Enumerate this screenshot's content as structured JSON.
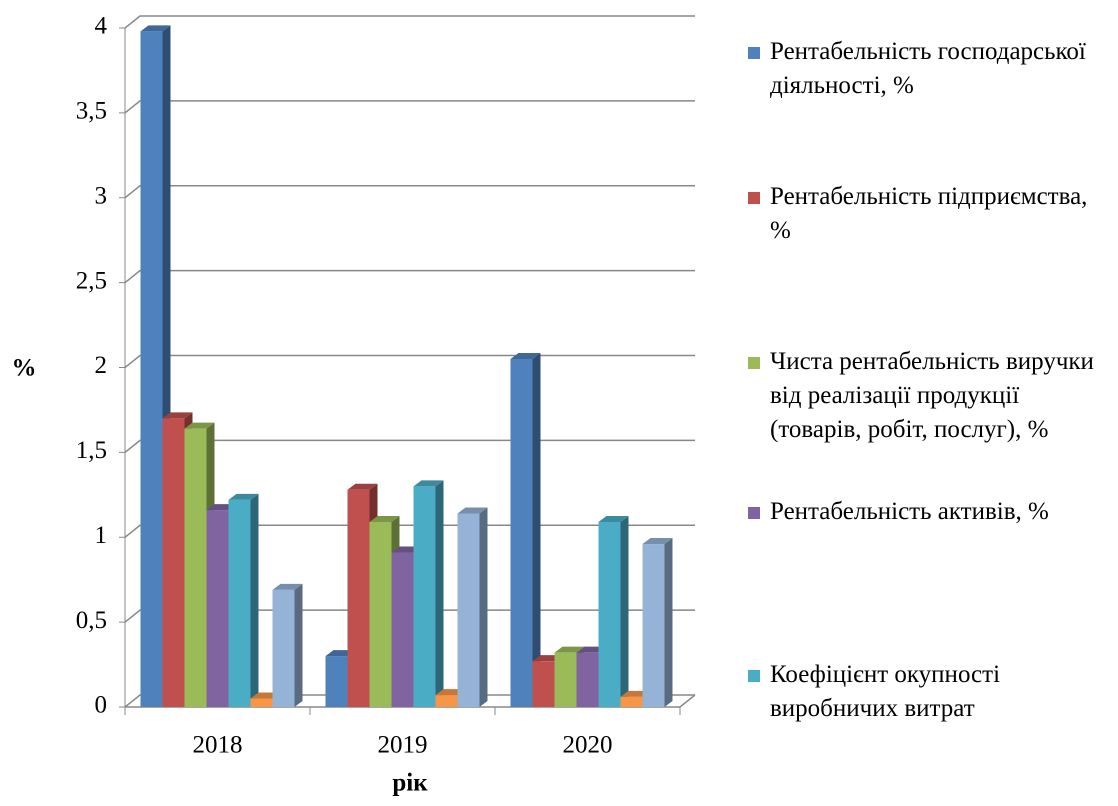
{
  "chart_data": {
    "type": "bar3d",
    "xlabel": "рік",
    "ylabel": "%",
    "categories": [
      "2018",
      "2019",
      "2020"
    ],
    "series": [
      {
        "name": "Рентабельність господарської діяльності, %",
        "color": "#4f81bd",
        "values": [
          3.98,
          0.3,
          2.05
        ]
      },
      {
        "name": "Рентабельність підприємства, %",
        "color": "#c0504d",
        "values": [
          1.7,
          1.28,
          0.27
        ]
      },
      {
        "name": "Чиста рентабельність виручки від реалізації продукції (товарів, робіт, послуг), %",
        "color": "#9bbb59",
        "values": [
          1.64,
          1.09,
          0.32
        ]
      },
      {
        "name": "Рентабельність активів, %",
        "color": "#8064a2",
        "values": [
          1.16,
          0.91,
          0.32
        ]
      },
      {
        "name": "Коефіцієнт окупності виробничих витрат",
        "color": "#4bacc6",
        "values": [
          1.22,
          1.3,
          1.09
        ]
      },
      {
        "color": "#f79646",
        "values": [
          0.05,
          0.07,
          0.06
        ]
      },
      {
        "color": "#95b3d7",
        "values": [
          0.69,
          1.14,
          0.96
        ]
      }
    ],
    "ylim": [
      0,
      4
    ],
    "yticks": [
      0,
      {
        "value": 0.5,
        "label": "0,5"
      },
      1,
      {
        "value": 1.5,
        "label": "1,5"
      },
      2,
      {
        "value": 2.5,
        "label": "2,5"
      },
      3,
      {
        "value": 3.5,
        "label": "3,5"
      },
      4
    ],
    "grid": true,
    "legend": "right"
  }
}
